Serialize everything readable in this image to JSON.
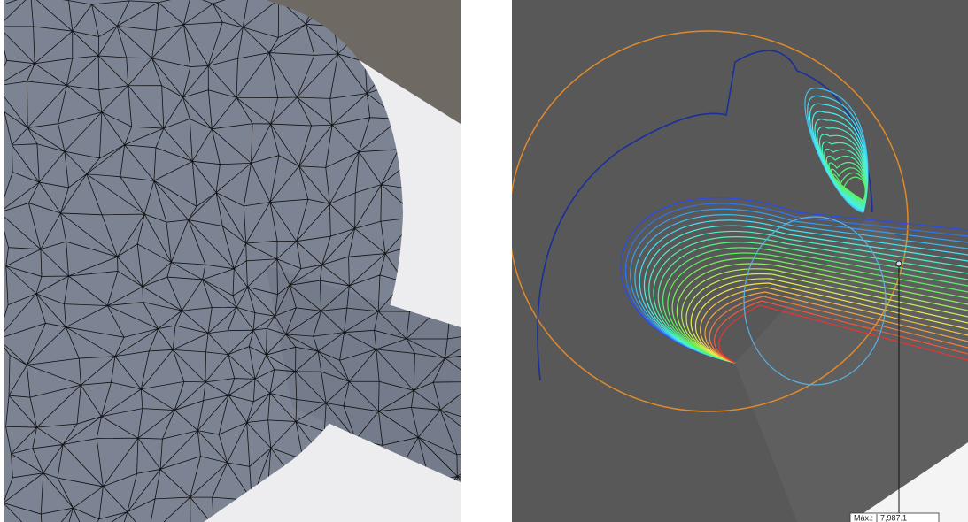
{
  "probe": {
    "label": "Máx.:",
    "value": "7,987.1"
  }
}
